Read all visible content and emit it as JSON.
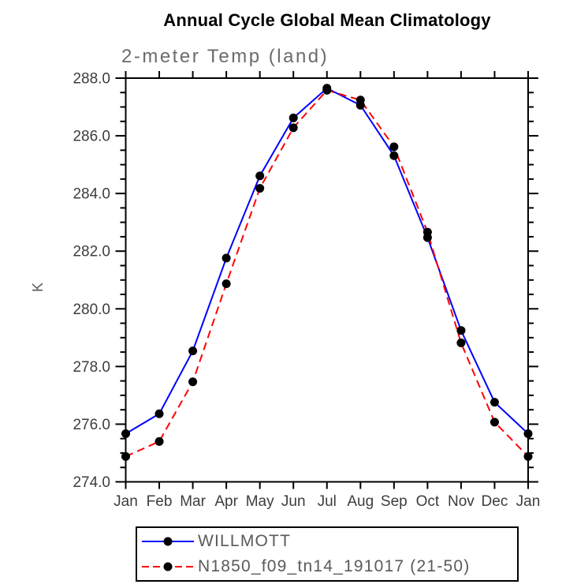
{
  "header": {
    "title": "Annual Cycle Global Mean Climatology",
    "subtitle": "2-meter Temp (land)"
  },
  "chart_data": {
    "type": "line",
    "title": "Annual Cycle Global Mean Climatology",
    "subtitle": "2-meter Temp (land)",
    "ylabel": "K",
    "xlabel": "",
    "categories": [
      "Jan",
      "Feb",
      "Mar",
      "Apr",
      "May",
      "Jun",
      "Jul",
      "Aug",
      "Sep",
      "Oct",
      "Nov",
      "Dec",
      "Jan"
    ],
    "series": [
      {
        "name": "WILLMOTT",
        "line_color": "#0000ff",
        "line_style": "solid",
        "marker": "filled-circle",
        "marker_color": "#000000",
        "values": [
          275.67,
          276.36,
          278.54,
          281.76,
          284.61,
          286.62,
          287.65,
          287.06,
          285.31,
          282.47,
          279.25,
          276.76,
          275.67
        ]
      },
      {
        "name": "N1850_f09_tn14_191017 (21-50)",
        "line_color": "#ff0000",
        "line_style": "dashed",
        "marker": "filled-circle",
        "marker_color": "#000000",
        "values": [
          274.88,
          275.4,
          277.47,
          280.87,
          284.18,
          286.28,
          287.58,
          287.24,
          285.62,
          282.66,
          278.82,
          276.07,
          274.88
        ]
      }
    ],
    "ylim": [
      274,
      288
    ],
    "ytick_major_step": 2,
    "ytick_minor_step": 0.5,
    "ytick_label_decimals": 1,
    "grid": false,
    "legend_position": "bottom"
  },
  "colors": {
    "background": "#ffffff",
    "axis": "#000000",
    "tick_label": "#3d3d3d",
    "subtitle_text": "#6b6b6b",
    "legend_text": "#5a5a5a"
  }
}
